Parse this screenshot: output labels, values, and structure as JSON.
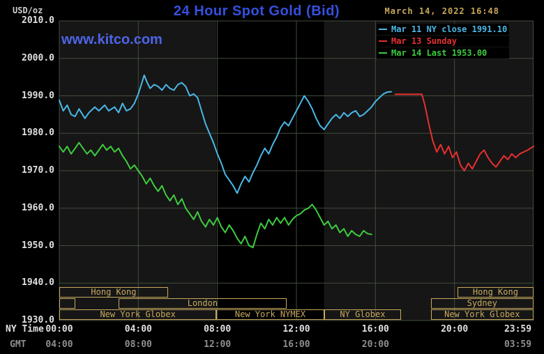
{
  "header": {
    "unit_label": "USD/oz",
    "title": "24 Hour Spot Gold (Bid)",
    "timestamp": "March 14, 2022 16:48",
    "watermark": "www.kitco.com"
  },
  "colors": {
    "title_blue": "#3650e0",
    "watermark_blue": "#4e64e8",
    "timestamp_tan": "#c8a858",
    "session_tan": "#c8aa60",
    "grid": "#414d3b",
    "plot_bg": "#161616",
    "band_bg": "#000000",
    "axis_white": "#e0e0e0",
    "gmt_gray": "#8f8f8f"
  },
  "legend": {
    "items": [
      {
        "label": "Mar 11 NY close 1991.10",
        "color": "#4ab8e8"
      },
      {
        "label": "Mar 13 Sunday",
        "color": "#e83030"
      },
      {
        "label": "Mar 14 Last 1953.00",
        "color": "#3ecc3e"
      }
    ]
  },
  "y_axis": {
    "labels": [
      "2010.0",
      "2000.0",
      "1990.0",
      "1980.0",
      "1970.0",
      "1960.0",
      "1950.0",
      "1940.0",
      "1930.0"
    ]
  },
  "x_axis": {
    "ny_label": "NY Time",
    "gmt_label": "GMT",
    "ny_ticks": [
      {
        "label": "00:00",
        "hour": 0
      },
      {
        "label": "04:00",
        "hour": 4
      },
      {
        "label": "08:00",
        "hour": 8
      },
      {
        "label": "12:00",
        "hour": 12
      },
      {
        "label": "16:00",
        "hour": 16
      },
      {
        "label": "20:00",
        "hour": 20
      },
      {
        "label": "23:59",
        "hour": 23.983,
        "dx": -22
      }
    ],
    "gmt_ticks": [
      {
        "label": "04:00",
        "hour": 0
      },
      {
        "label": "08:00",
        "hour": 4
      },
      {
        "label": "12:00",
        "hour": 8
      },
      {
        "label": "16:00",
        "hour": 12
      },
      {
        "label": "20:00",
        "hour": 16
      },
      {
        "label": "03:59",
        "hour": 23.983,
        "dx": -22
      }
    ]
  },
  "sessions": [
    {
      "label": "Hong Kong",
      "row": 1,
      "start": 0,
      "end": 5.5
    },
    {
      "label": "",
      "row": 2,
      "start": 0,
      "end": 0.8
    },
    {
      "label": "London",
      "row": 2,
      "start": 3.0,
      "end": 11.5
    },
    {
      "label": "New York Globex",
      "row": 3,
      "start": 0,
      "end": 7.95
    },
    {
      "label": "New York NYMEX",
      "row": 3,
      "start": 7.95,
      "end": 13.4
    },
    {
      "label": "NY Globex",
      "row": 3,
      "start": 13.4,
      "end": 17.3
    },
    {
      "label": "Hong Kong",
      "row": 1,
      "start": 20.15,
      "end": 24
    },
    {
      "label": "Sydney",
      "row": 2,
      "start": 18.8,
      "end": 24
    },
    {
      "label": "New York Globex",
      "row": 3,
      "start": 18.8,
      "end": 24
    }
  ],
  "chart_data": {
    "type": "line",
    "title": "24 Hour Spot Gold (Bid)",
    "ylabel": "USD/oz",
    "xlabel": "NY Time (hours 00:00-23:59)",
    "ylim": [
      1930,
      2010
    ],
    "xlim_hours": [
      0,
      24
    ],
    "y_gridline_step": 10,
    "x_gridline_hours": [
      0,
      4,
      8,
      12,
      16,
      20,
      23.983
    ],
    "shaded_band_hours": [
      7.95,
      13.4
    ],
    "legend_position": "top-right",
    "series": [
      {
        "name": "Mar 11 NY close 1991.10",
        "color": "#4ab8e8",
        "close_value": 1991.1,
        "points": [
          [
            0,
            1988.8
          ],
          [
            0.2,
            1986
          ],
          [
            0.4,
            1987.5
          ],
          [
            0.6,
            1985
          ],
          [
            0.8,
            1984.5
          ],
          [
            1,
            1986.5
          ],
          [
            1.3,
            1984
          ],
          [
            1.5,
            1985.5
          ],
          [
            1.8,
            1987
          ],
          [
            2,
            1986
          ],
          [
            2.3,
            1987.5
          ],
          [
            2.5,
            1986
          ],
          [
            2.8,
            1987
          ],
          [
            3,
            1985.5
          ],
          [
            3.2,
            1988
          ],
          [
            3.4,
            1986
          ],
          [
            3.6,
            1986.5
          ],
          [
            3.8,
            1988
          ],
          [
            4,
            1990.5
          ],
          [
            4.15,
            1993
          ],
          [
            4.3,
            1995.5
          ],
          [
            4.45,
            1993.5
          ],
          [
            4.6,
            1992
          ],
          [
            4.8,
            1993
          ],
          [
            5,
            1992.5
          ],
          [
            5.2,
            1991.5
          ],
          [
            5.4,
            1993
          ],
          [
            5.6,
            1992
          ],
          [
            5.8,
            1991.5
          ],
          [
            6,
            1993
          ],
          [
            6.2,
            1993.5
          ],
          [
            6.4,
            1992.5
          ],
          [
            6.6,
            1990
          ],
          [
            6.8,
            1990.5
          ],
          [
            7,
            1989.5
          ],
          [
            7.2,
            1986
          ],
          [
            7.4,
            1982.5
          ],
          [
            7.6,
            1980
          ],
          [
            7.8,
            1977.5
          ],
          [
            8,
            1974.5
          ],
          [
            8.2,
            1972
          ],
          [
            8.4,
            1969
          ],
          [
            8.6,
            1967.5
          ],
          [
            8.8,
            1966
          ],
          [
            9,
            1964
          ],
          [
            9.2,
            1966.5
          ],
          [
            9.4,
            1968.5
          ],
          [
            9.6,
            1967
          ],
          [
            9.8,
            1969.5
          ],
          [
            10,
            1971.5
          ],
          [
            10.2,
            1974
          ],
          [
            10.4,
            1976
          ],
          [
            10.6,
            1974.5
          ],
          [
            10.8,
            1977
          ],
          [
            11,
            1979
          ],
          [
            11.2,
            1981.5
          ],
          [
            11.4,
            1983
          ],
          [
            11.6,
            1982
          ],
          [
            11.8,
            1984
          ],
          [
            12,
            1986
          ],
          [
            12.2,
            1988
          ],
          [
            12.4,
            1990
          ],
          [
            12.6,
            1988.5
          ],
          [
            12.8,
            1986.5
          ],
          [
            13,
            1984
          ],
          [
            13.2,
            1982
          ],
          [
            13.4,
            1981
          ],
          [
            13.6,
            1982.5
          ],
          [
            13.8,
            1984
          ],
          [
            14,
            1985
          ],
          [
            14.2,
            1984
          ],
          [
            14.4,
            1985.5
          ],
          [
            14.6,
            1984.5
          ],
          [
            14.8,
            1985.5
          ],
          [
            15,
            1986
          ],
          [
            15.2,
            1984.5
          ],
          [
            15.4,
            1985
          ],
          [
            15.6,
            1986
          ],
          [
            15.8,
            1987
          ],
          [
            16,
            1988.5
          ],
          [
            16.2,
            1989.5
          ],
          [
            16.4,
            1990.5
          ],
          [
            16.6,
            1991
          ],
          [
            16.8,
            1991.1
          ]
        ]
      },
      {
        "name": "Mar 13 Sunday",
        "color": "#e83030",
        "points": [
          [
            17,
            1990.4
          ],
          [
            17.4,
            1990.4
          ],
          [
            17.8,
            1990.4
          ],
          [
            18.2,
            1990.4
          ],
          [
            18.35,
            1990.4
          ],
          [
            18.5,
            1987.5
          ],
          [
            18.7,
            1982.5
          ],
          [
            18.9,
            1978
          ],
          [
            19.1,
            1975
          ],
          [
            19.3,
            1977
          ],
          [
            19.5,
            1974.5
          ],
          [
            19.7,
            1976.5
          ],
          [
            19.9,
            1973.5
          ],
          [
            20.1,
            1975
          ],
          [
            20.3,
            1971.5
          ],
          [
            20.5,
            1970
          ],
          [
            20.7,
            1972
          ],
          [
            20.9,
            1970.5
          ],
          [
            21.1,
            1972.5
          ],
          [
            21.3,
            1974.5
          ],
          [
            21.5,
            1975.5
          ],
          [
            21.7,
            1973.5
          ],
          [
            21.9,
            1972
          ],
          [
            22.1,
            1971
          ],
          [
            22.3,
            1972.5
          ],
          [
            22.5,
            1974
          ],
          [
            22.7,
            1973
          ],
          [
            22.9,
            1974.5
          ],
          [
            23.1,
            1973.5
          ],
          [
            23.3,
            1974.5
          ],
          [
            23.5,
            1975
          ],
          [
            23.7,
            1975.5
          ],
          [
            24,
            1976.5
          ]
        ]
      },
      {
        "name": "Mar 14 Last 1953.00",
        "color": "#3ecc3e",
        "last_value": 1953.0,
        "points": [
          [
            0,
            1976.5
          ],
          [
            0.2,
            1975
          ],
          [
            0.4,
            1976.5
          ],
          [
            0.6,
            1974.5
          ],
          [
            0.8,
            1976
          ],
          [
            1,
            1977.5
          ],
          [
            1.2,
            1976
          ],
          [
            1.4,
            1974.5
          ],
          [
            1.6,
            1975.5
          ],
          [
            1.8,
            1974
          ],
          [
            2,
            1975.5
          ],
          [
            2.2,
            1977
          ],
          [
            2.4,
            1975.5
          ],
          [
            2.6,
            1976.5
          ],
          [
            2.8,
            1975
          ],
          [
            3,
            1976
          ],
          [
            3.2,
            1974
          ],
          [
            3.4,
            1972.5
          ],
          [
            3.6,
            1970.5
          ],
          [
            3.8,
            1971.5
          ],
          [
            4,
            1970
          ],
          [
            4.2,
            1968.5
          ],
          [
            4.4,
            1966.5
          ],
          [
            4.6,
            1968
          ],
          [
            4.8,
            1966
          ],
          [
            5,
            1964.5
          ],
          [
            5.2,
            1966
          ],
          [
            5.4,
            1963.5
          ],
          [
            5.6,
            1962
          ],
          [
            5.8,
            1963.5
          ],
          [
            6,
            1961
          ],
          [
            6.2,
            1962.5
          ],
          [
            6.4,
            1960
          ],
          [
            6.6,
            1958.5
          ],
          [
            6.8,
            1957
          ],
          [
            7,
            1959
          ],
          [
            7.2,
            1956.5
          ],
          [
            7.4,
            1955
          ],
          [
            7.6,
            1957
          ],
          [
            7.8,
            1955.5
          ],
          [
            8,
            1957.5
          ],
          [
            8.2,
            1955
          ],
          [
            8.4,
            1953.5
          ],
          [
            8.6,
            1955.5
          ],
          [
            8.8,
            1954
          ],
          [
            9,
            1952
          ],
          [
            9.2,
            1950.5
          ],
          [
            9.4,
            1952.5
          ],
          [
            9.6,
            1950
          ],
          [
            9.8,
            1949.5
          ],
          [
            10,
            1953
          ],
          [
            10.2,
            1956
          ],
          [
            10.4,
            1954.5
          ],
          [
            10.6,
            1957
          ],
          [
            10.8,
            1955.5
          ],
          [
            11,
            1957.5
          ],
          [
            11.2,
            1956
          ],
          [
            11.4,
            1957.5
          ],
          [
            11.6,
            1955.5
          ],
          [
            11.8,
            1957
          ],
          [
            12,
            1958
          ],
          [
            12.2,
            1958.5
          ],
          [
            12.4,
            1959.5
          ],
          [
            12.6,
            1960
          ],
          [
            12.8,
            1961
          ],
          [
            13,
            1959.5
          ],
          [
            13.2,
            1957.5
          ],
          [
            13.4,
            1955.5
          ],
          [
            13.6,
            1956.5
          ],
          [
            13.8,
            1954.5
          ],
          [
            14,
            1955.5
          ],
          [
            14.2,
            1953.5
          ],
          [
            14.4,
            1954.5
          ],
          [
            14.6,
            1952.5
          ],
          [
            14.8,
            1954
          ],
          [
            15,
            1953
          ],
          [
            15.2,
            1952.5
          ],
          [
            15.4,
            1954
          ],
          [
            15.6,
            1953.2
          ],
          [
            15.8,
            1953
          ]
        ]
      }
    ]
  }
}
